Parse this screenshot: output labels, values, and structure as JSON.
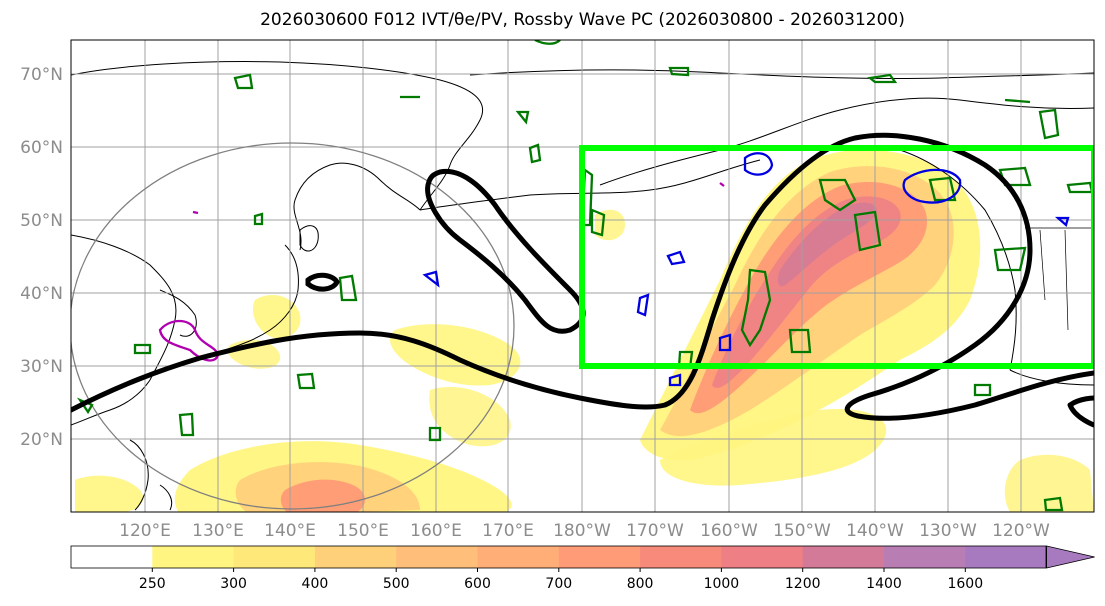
{
  "title": "2026030600 F012 IVT/θe/PV, Rossby Wave PC (2026030800 - 2026031200)",
  "lat_labels": [
    "70°N",
    "60°N",
    "50°N",
    "40°N",
    "30°N",
    "20°N"
  ],
  "lon_labels": [
    "120°E",
    "130°E",
    "140°E",
    "150°E",
    "160°E",
    "170°E",
    "180°W",
    "170°W",
    "160°W",
    "150°W",
    "140°W",
    "130°W",
    "120°W"
  ],
  "colorbar": {
    "ticks": [
      "250",
      "300",
      "400",
      "500",
      "600",
      "700",
      "800",
      "1000",
      "1200",
      "1400",
      "1600"
    ],
    "colors": [
      "#ffffff",
      "#fff580",
      "#ffe87a",
      "#ffd07a",
      "#ffbf7a",
      "#ffae78",
      "#ff9b76",
      "#f78a7a",
      "#ee7f85",
      "#d27a98",
      "#b87db3",
      "#a77ac0"
    ]
  },
  "colors": {
    "pv_contour": "#000000",
    "box": "#00ff00",
    "theta_e": "#007a00",
    "blue_contour": "#0000e0",
    "magenta_contour": "#b000b0",
    "coastline": "#000000",
    "gridline": "#a0a0a0"
  }
}
